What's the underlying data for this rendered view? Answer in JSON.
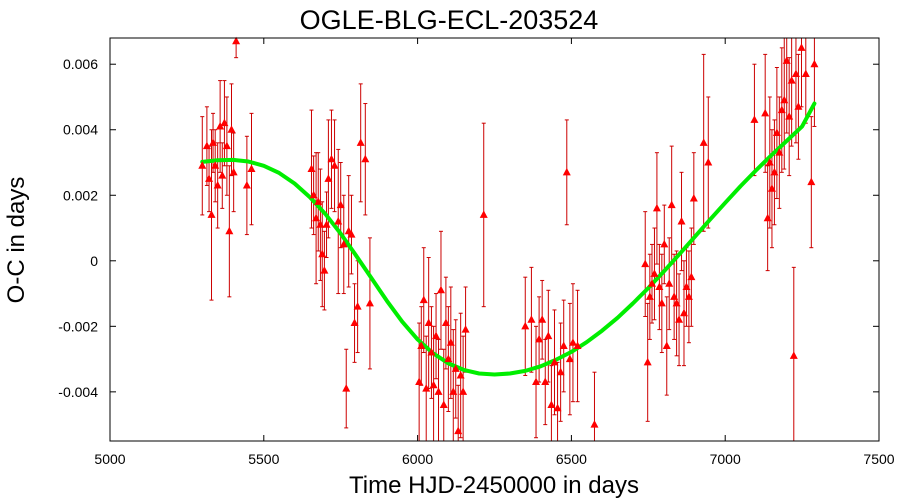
{
  "chart_data": {
    "type": "scatter",
    "title": "OGLE-BLG-ECL-203524",
    "xlabel": "Time HJD-2450000 in days",
    "ylabel": "O-C in days",
    "xlim": [
      5000,
      7500
    ],
    "ylim": [
      -0.0055,
      0.0068
    ],
    "xticks": [
      5000,
      5500,
      6000,
      6500,
      7000,
      7500
    ],
    "yticks": [
      -0.004,
      -0.002,
      0,
      0.002,
      0.004,
      0.006
    ],
    "xtick_labels": [
      "5000",
      "5500",
      "6000",
      "6500",
      "7000",
      "7500"
    ],
    "ytick_labels": [
      "-0.004",
      "-0.002",
      "0",
      "0.002",
      "0.004",
      "0.006"
    ],
    "grid": false,
    "legend": "none",
    "colors": {
      "points": "#ff0000",
      "errorbars": "#cc0000",
      "fit": "#00ee00"
    },
    "series": [
      {
        "kind": "errorbar-points",
        "points": [
          {
            "x": 5300,
            "y": 0.0029,
            "err": 0.0015
          },
          {
            "x": 5315,
            "y": 0.0035,
            "err": 0.0012
          },
          {
            "x": 5322,
            "y": 0.0025,
            "err": 0.001
          },
          {
            "x": 5330,
            "y": 0.0014,
            "err": 0.0026
          },
          {
            "x": 5335,
            "y": 0.0036,
            "err": 0.0009
          },
          {
            "x": 5342,
            "y": 0.0029,
            "err": 0.0011
          },
          {
            "x": 5350,
            "y": 0.0023,
            "err": 0.0013
          },
          {
            "x": 5358,
            "y": 0.0041,
            "err": 0.0014
          },
          {
            "x": 5365,
            "y": 0.0026,
            "err": 0.001
          },
          {
            "x": 5372,
            "y": 0.0042,
            "err": 0.0013
          },
          {
            "x": 5380,
            "y": 0.0035,
            "err": 0.0015
          },
          {
            "x": 5388,
            "y": 0.0009,
            "err": 0.002
          },
          {
            "x": 5395,
            "y": 0.004,
            "err": 0.0014
          },
          {
            "x": 5402,
            "y": 0.0027,
            "err": 0.0012
          },
          {
            "x": 5410,
            "y": 0.0067,
            "err": 0.0005
          },
          {
            "x": 5445,
            "y": 0.0023,
            "err": 0.0015
          },
          {
            "x": 5460,
            "y": 0.0028,
            "err": 0.0017
          },
          {
            "x": 5655,
            "y": 0.0028,
            "err": 0.0018
          },
          {
            "x": 5662,
            "y": 0.002,
            "err": 0.0012
          },
          {
            "x": 5670,
            "y": 0.0013,
            "err": 0.002
          },
          {
            "x": 5677,
            "y": 0.0018,
            "err": 0.0015
          },
          {
            "x": 5684,
            "y": 0.0011,
            "err": 0.0017
          },
          {
            "x": 5690,
            "y": 0.0002,
            "err": 0.0016
          },
          {
            "x": 5697,
            "y": -0.0003,
            "err": 0.0012
          },
          {
            "x": 5704,
            "y": 0.0011,
            "err": 0.001
          },
          {
            "x": 5710,
            "y": 0.0025,
            "err": 0.0018
          },
          {
            "x": 5720,
            "y": 0.0031,
            "err": 0.0015
          },
          {
            "x": 5730,
            "y": 0.0029,
            "err": 0.0014
          },
          {
            "x": 5742,
            "y": 0.0012,
            "err": 0.0022
          },
          {
            "x": 5750,
            "y": 0.0017,
            "err": 0.0013
          },
          {
            "x": 5760,
            "y": 0.0005,
            "err": 0.0015
          },
          {
            "x": 5768,
            "y": -0.0039,
            "err": 0.0012
          },
          {
            "x": 5776,
            "y": 0.0009,
            "err": 0.0017
          },
          {
            "x": 5785,
            "y": 0.0008,
            "err": 0.0012
          },
          {
            "x": 5795,
            "y": -0.0019,
            "err": 0.0012
          },
          {
            "x": 5805,
            "y": -0.0014,
            "err": 0.0014
          },
          {
            "x": 5815,
            "y": 0.0036,
            "err": 0.0018
          },
          {
            "x": 5830,
            "y": 0.0031,
            "err": 0.0017
          },
          {
            "x": 5845,
            "y": -0.0013,
            "err": 0.002
          },
          {
            "x": 6005,
            "y": -0.0037,
            "err": 0.0018
          },
          {
            "x": 6012,
            "y": -0.0026,
            "err": 0.0012
          },
          {
            "x": 6020,
            "y": -0.0012,
            "err": 0.0016
          },
          {
            "x": 6028,
            "y": -0.0039,
            "err": 0.0016
          },
          {
            "x": 6036,
            "y": -0.0019,
            "err": 0.002
          },
          {
            "x": 6045,
            "y": -0.0028,
            "err": 0.0014
          },
          {
            "x": 6052,
            "y": -0.0038,
            "err": 0.0018
          },
          {
            "x": 6060,
            "y": -0.0023,
            "err": 0.0013
          },
          {
            "x": 6068,
            "y": -0.004,
            "err": 0.0016
          },
          {
            "x": 6076,
            "y": -0.0009,
            "err": 0.0018
          },
          {
            "x": 6085,
            "y": -0.0044,
            "err": 0.0017
          },
          {
            "x": 6092,
            "y": -0.0019,
            "err": 0.0014
          },
          {
            "x": 6100,
            "y": -0.003,
            "err": 0.0016
          },
          {
            "x": 6108,
            "y": -0.0025,
            "err": 0.0017
          },
          {
            "x": 6116,
            "y": -0.004,
            "err": 0.0019
          },
          {
            "x": 6124,
            "y": -0.0033,
            "err": 0.0015
          },
          {
            "x": 6132,
            "y": -0.0052,
            "err": 0.0014
          },
          {
            "x": 6140,
            "y": -0.0035,
            "err": 0.0019
          },
          {
            "x": 6148,
            "y": -0.004,
            "err": 0.0017
          },
          {
            "x": 6156,
            "y": -0.0021,
            "err": 0.0013
          },
          {
            "x": 6215,
            "y": 0.0014,
            "err": 0.0028
          },
          {
            "x": 6350,
            "y": -0.002,
            "err": 0.0015
          },
          {
            "x": 6370,
            "y": -0.0018,
            "err": 0.0016
          },
          {
            "x": 6385,
            "y": -0.0037,
            "err": 0.0017
          },
          {
            "x": 6395,
            "y": -0.0024,
            "err": 0.0013
          },
          {
            "x": 6405,
            "y": -0.0018,
            "err": 0.0012
          },
          {
            "x": 6415,
            "y": -0.0037,
            "err": 0.0013
          },
          {
            "x": 6425,
            "y": -0.0023,
            "err": 0.0014
          },
          {
            "x": 6435,
            "y": -0.0044,
            "err": 0.0012
          },
          {
            "x": 6445,
            "y": -0.0031,
            "err": 0.0016
          },
          {
            "x": 6455,
            "y": -0.0045,
            "err": 0.0014
          },
          {
            "x": 6465,
            "y": -0.0034,
            "err": 0.0015
          },
          {
            "x": 6475,
            "y": -0.0026,
            "err": 0.0014
          },
          {
            "x": 6485,
            "y": 0.0027,
            "err": 0.0016
          },
          {
            "x": 6495,
            "y": -0.003,
            "err": 0.0017
          },
          {
            "x": 6505,
            "y": -0.0025,
            "err": 0.0018
          },
          {
            "x": 6520,
            "y": -0.0026,
            "err": 0.0017
          },
          {
            "x": 6575,
            "y": -0.005,
            "err": 0.0016
          },
          {
            "x": 6740,
            "y": -0.0001,
            "err": 0.0016
          },
          {
            "x": 6748,
            "y": -0.0031,
            "err": 0.0018
          },
          {
            "x": 6755,
            "y": -0.0011,
            "err": 0.0013
          },
          {
            "x": 6762,
            "y": -0.0007,
            "err": 0.0012
          },
          {
            "x": 6770,
            "y": -0.0004,
            "err": 0.0014
          },
          {
            "x": 6778,
            "y": 0.0016,
            "err": 0.0017
          },
          {
            "x": 6786,
            "y": -0.0008,
            "err": 0.0013
          },
          {
            "x": 6794,
            "y": -0.0013,
            "err": 0.0015
          },
          {
            "x": 6802,
            "y": 0.0005,
            "err": 0.0012
          },
          {
            "x": 6810,
            "y": -0.0026,
            "err": 0.0015
          },
          {
            "x": 6818,
            "y": -0.0007,
            "err": 0.0014
          },
          {
            "x": 6826,
            "y": 0.0017,
            "err": 0.0018
          },
          {
            "x": 6834,
            "y": -0.0011,
            "err": 0.0013
          },
          {
            "x": 6842,
            "y": -0.0013,
            "err": 0.0016
          },
          {
            "x": 6850,
            "y": -0.0018,
            "err": 0.0014
          },
          {
            "x": 6858,
            "y": 0.0012,
            "err": 0.0015
          },
          {
            "x": 6866,
            "y": -0.0016,
            "err": 0.0016
          },
          {
            "x": 6874,
            "y": -0.0008,
            "err": 0.0012
          },
          {
            "x": 6882,
            "y": -0.0011,
            "err": 0.0014
          },
          {
            "x": 6890,
            "y": -0.0005,
            "err": 0.0015
          },
          {
            "x": 6898,
            "y": 0.0019,
            "err": 0.0014
          },
          {
            "x": 6930,
            "y": 0.0036,
            "err": 0.0027
          },
          {
            "x": 6945,
            "y": 0.003,
            "err": 0.002
          },
          {
            "x": 7095,
            "y": 0.0043,
            "err": 0.0017
          },
          {
            "x": 7130,
            "y": 0.0045,
            "err": 0.0018
          },
          {
            "x": 7138,
            "y": 0.0013,
            "err": 0.0016
          },
          {
            "x": 7145,
            "y": 0.003,
            "err": 0.002
          },
          {
            "x": 7152,
            "y": 0.0022,
            "err": 0.0018
          },
          {
            "x": 7160,
            "y": 0.0027,
            "err": 0.0016
          },
          {
            "x": 7168,
            "y": 0.0039,
            "err": 0.002
          },
          {
            "x": 7176,
            "y": 0.0033,
            "err": 0.0017
          },
          {
            "x": 7184,
            "y": 0.0046,
            "err": 0.0019
          },
          {
            "x": 7192,
            "y": 0.0049,
            "err": 0.0021
          },
          {
            "x": 7200,
            "y": 0.0061,
            "err": 0.0022
          },
          {
            "x": 7208,
            "y": 0.0044,
            "err": 0.0018
          },
          {
            "x": 7216,
            "y": 0.0055,
            "err": 0.002
          },
          {
            "x": 7223,
            "y": -0.0029,
            "err": 0.0027
          },
          {
            "x": 7230,
            "y": 0.0057,
            "err": 0.0021
          },
          {
            "x": 7238,
            "y": 0.0047,
            "err": 0.0016
          },
          {
            "x": 7248,
            "y": 0.0065,
            "err": 0.0018
          },
          {
            "x": 7262,
            "y": 0.0057,
            "err": 0.0015
          },
          {
            "x": 7280,
            "y": 0.0024,
            "err": 0.002
          },
          {
            "x": 7290,
            "y": 0.006,
            "err": 0.0019
          }
        ]
      },
      {
        "kind": "fit-curve",
        "x": [
          5300,
          5350,
          5400,
          5450,
          5500,
          5550,
          5600,
          5650,
          5700,
          5750,
          5800,
          5850,
          5900,
          5950,
          6000,
          6050,
          6100,
          6150,
          6200,
          6250,
          6300,
          6350,
          6400,
          6450,
          6500,
          6550,
          6600,
          6650,
          6700,
          6750,
          6800,
          6850,
          6900,
          6950,
          7000,
          7050,
          7100,
          7150,
          7200,
          7250,
          7290
        ],
        "y": [
          0.00302,
          0.00307,
          0.00308,
          0.00303,
          0.0029,
          0.00268,
          0.00236,
          0.00194,
          0.00143,
          0.00083,
          0.00016,
          -0.00053,
          -0.00122,
          -0.00186,
          -0.0024,
          -0.00282,
          -0.00313,
          -0.00333,
          -0.00344,
          -0.00347,
          -0.00344,
          -0.00336,
          -0.00322,
          -0.00302,
          -0.00278,
          -0.00248,
          -0.00213,
          -0.00174,
          -0.0013,
          -0.00083,
          -0.00033,
          0.00019,
          0.00072,
          0.00125,
          0.00177,
          0.00228,
          0.00276,
          0.00322,
          0.00366,
          0.0041,
          0.0048
        ]
      }
    ]
  }
}
